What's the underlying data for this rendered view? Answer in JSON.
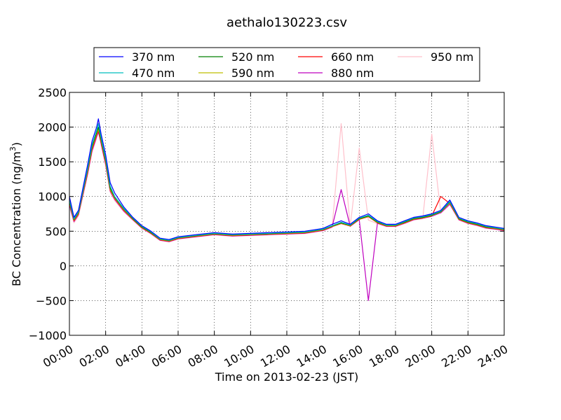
{
  "chart_data": {
    "type": "line",
    "title": "aethalo130223.csv",
    "xlabel": "Time on 2013-02-23 (JST)",
    "ylabel": "BC Concentration (ng/m³)",
    "ylabel_parts": {
      "main": "BC Concentration (ng/m",
      "sup": "3",
      "end": ")"
    },
    "x_ticks": [
      "00:00",
      "02:00",
      "04:00",
      "06:00",
      "08:00",
      "10:00",
      "12:00",
      "14:00",
      "16:00",
      "18:00",
      "20:00",
      "22:00",
      "24:00"
    ],
    "y_ticks": [
      "−1000",
      "−500",
      "0",
      "500",
      "1000",
      "1500",
      "2000",
      "2500"
    ],
    "xlim_hours": [
      0,
      24
    ],
    "ylim": [
      -1000,
      2500
    ],
    "grid": true,
    "legend_position": "above-plot",
    "x_hours": [
      0,
      0.25,
      0.5,
      1,
      1.25,
      1.5,
      1.6,
      1.75,
      2,
      2.25,
      2.5,
      3,
      3.5,
      4,
      4.5,
      5,
      5.5,
      6,
      7,
      8,
      9,
      10,
      11,
      12,
      13,
      14,
      14.5,
      15,
      15.5,
      16,
      16.5,
      17,
      17.5,
      18,
      18.5,
      19,
      19.5,
      20,
      20.5,
      21,
      21.5,
      22,
      22.5,
      23,
      23.5,
      24
    ],
    "series": [
      {
        "name": "370 nm",
        "color": "#0000ff",
        "values": [
          1000,
          700,
          800,
          1450,
          1800,
          2000,
          2120,
          1900,
          1600,
          1200,
          1050,
          850,
          700,
          580,
          500,
          400,
          380,
          420,
          450,
          480,
          460,
          470,
          480,
          490,
          500,
          540,
          600,
          650,
          600,
          700,
          750,
          650,
          600,
          600,
          650,
          700,
          720,
          750,
          800,
          950,
          700,
          650,
          620,
          580,
          560,
          540
        ]
      },
      {
        "name": "470 nm",
        "color": "#00bfbf",
        "values": [
          950,
          680,
          780,
          1400,
          1750,
          1950,
          2050,
          1850,
          1550,
          1150,
          1000,
          830,
          690,
          570,
          490,
          390,
          370,
          410,
          440,
          470,
          450,
          460,
          470,
          480,
          490,
          530,
          580,
          630,
          590,
          690,
          730,
          640,
          590,
          590,
          640,
          690,
          710,
          740,
          790,
          930,
          690,
          640,
          610,
          570,
          550,
          530
        ]
      },
      {
        "name": "520 nm",
        "color": "#008000",
        "values": [
          930,
          670,
          770,
          1380,
          1720,
          1920,
          2000,
          1820,
          1520,
          1120,
          990,
          820,
          680,
          560,
          480,
          385,
          365,
          405,
          435,
          465,
          445,
          455,
          465,
          475,
          485,
          525,
          575,
          620,
          585,
          680,
          720,
          630,
          585,
          585,
          630,
          680,
          700,
          730,
          780,
          920,
          680,
          630,
          600,
          560,
          545,
          525
        ]
      },
      {
        "name": "590 nm",
        "color": "#bfbf00",
        "values": [
          920,
          660,
          760,
          1360,
          1700,
          1900,
          1970,
          1800,
          1500,
          1100,
          980,
          810,
          675,
          555,
          475,
          380,
          360,
          400,
          430,
          460,
          440,
          450,
          460,
          470,
          480,
          520,
          570,
          615,
          580,
          675,
          715,
          625,
          580,
          580,
          625,
          675,
          695,
          725,
          775,
          910,
          675,
          625,
          595,
          555,
          540,
          520
        ]
      },
      {
        "name": "660 nm",
        "color": "#ff0000",
        "values": [
          900,
          650,
          750,
          1340,
          1680,
          1880,
          1950,
          1780,
          1480,
          1090,
          970,
          800,
          670,
          550,
          470,
          375,
          355,
          395,
          425,
          455,
          435,
          445,
          455,
          465,
          475,
          515,
          565,
          610,
          575,
          670,
          710,
          620,
          575,
          575,
          620,
          670,
          690,
          720,
          1000,
          900,
          670,
          620,
          590,
          550,
          535,
          515
        ]
      },
      {
        "name": "880 nm",
        "color": "#bf00bf",
        "values": [
          880,
          640,
          740,
          1320,
          1660,
          1860,
          1930,
          1760,
          1460,
          1080,
          960,
          790,
          665,
          545,
          465,
          370,
          350,
          390,
          420,
          450,
          430,
          440,
          450,
          460,
          470,
          510,
          560,
          1100,
          570,
          665,
          -500,
          615,
          570,
          570,
          615,
          665,
          685,
          715,
          765,
          890,
          665,
          615,
          585,
          545,
          530,
          510
        ]
      },
      {
        "name": "950 nm",
        "color": "#ffc0cb",
        "values": [
          850,
          620,
          720,
          1300,
          1640,
          1840,
          2100,
          1740,
          1440,
          1060,
          940,
          780,
          660,
          540,
          460,
          365,
          345,
          385,
          415,
          445,
          425,
          435,
          445,
          455,
          465,
          505,
          555,
          2050,
          565,
          1700,
          660,
          610,
          565,
          565,
          610,
          660,
          680,
          1900,
          760,
          880,
          660,
          610,
          580,
          540,
          525,
          505
        ]
      }
    ]
  }
}
